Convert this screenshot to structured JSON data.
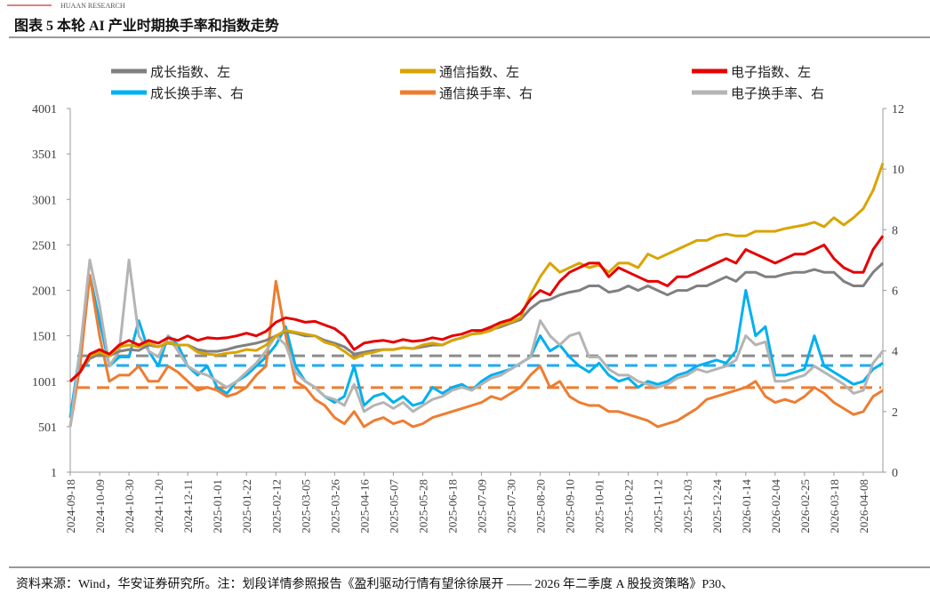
{
  "header": {
    "brand": "HUAAN RESEARCH"
  },
  "footer": {
    "source": "资料来源：Wind，华安证券研究所。注：划段详情参照报告《盈利驱动行情有望徐徐展开 —— 2026 年二季度 A 股投资策略》P30、"
  },
  "chart_data": {
    "type": "line",
    "title": "图表 5 本轮 AI 产业时期换手率和指数走势",
    "categories": [
      "2024-09-18",
      null,
      null,
      "2024-10-09",
      null,
      null,
      "2024-10-30",
      null,
      null,
      "2024-11-20",
      null,
      null,
      "2024-12-11",
      null,
      null,
      "2025-01-01",
      null,
      null,
      "2025-01-22",
      null,
      null,
      "2025-02-12",
      null,
      null,
      "2025-03-05",
      null,
      null,
      "2025-03-26",
      null,
      null,
      "2025-04-16",
      null,
      null,
      "2025-05-07",
      null,
      null,
      "2025-05-28",
      null,
      null,
      "2025-06-18",
      null,
      null,
      "2025-07-09",
      null,
      null,
      "2025-07-30",
      null,
      null,
      "2025-08-20",
      null,
      null,
      "2025-09-10",
      null,
      null,
      "2025-10-01",
      null,
      null,
      "2025-10-22",
      null,
      null,
      "2025-11-12",
      null,
      null,
      "2025-12-03",
      null,
      null,
      "2025-12-24",
      null,
      null,
      "2026-01-14",
      null,
      null,
      "2026-02-04",
      null,
      null,
      "2026-02-25",
      null,
      null,
      "2026-03-18",
      null,
      null,
      "2026-04-08",
      null,
      null
    ],
    "ylim": [
      1,
      4001
    ],
    "yticks": [
      1,
      501,
      1001,
      1501,
      2001,
      2501,
      3001,
      3501,
      4001
    ],
    "y2lim": [
      0,
      12
    ],
    "y2ticks": [
      0,
      2,
      4,
      6,
      8,
      10,
      12
    ],
    "legend": "top",
    "series": [
      {
        "name": "成长指数、左",
        "color": "#808080",
        "values": [
          1000,
          1100,
          1250,
          1300,
          1280,
          1330,
          1350,
          1340,
          1400,
          1380,
          1420,
          1400,
          1400,
          1350,
          1330,
          1330,
          1350,
          1380,
          1400,
          1420,
          1450,
          1500,
          1550,
          1530,
          1500,
          1500,
          1450,
          1420,
          1380,
          1300,
          1320,
          1340,
          1350,
          1350,
          1370,
          1360,
          1380,
          1400,
          1400,
          1450,
          1480,
          1520,
          1540,
          1570,
          1600,
          1640,
          1680,
          1800,
          1880,
          1900,
          1950,
          1980,
          2000,
          2050,
          2050,
          1980,
          2000,
          2050,
          2000,
          2050,
          2000,
          1950,
          2000,
          2000,
          2050,
          2050,
          2100,
          2150,
          2100,
          2200,
          2200,
          2150,
          2150,
          2180,
          2200,
          2200,
          2230,
          2200,
          2200,
          2100,
          2050,
          2050,
          2200,
          2300
        ]
      },
      {
        "name": "通信指数、左",
        "color": "#d9a400",
        "values": [
          1000,
          1100,
          1280,
          1320,
          1280,
          1380,
          1400,
          1380,
          1420,
          1380,
          1430,
          1400,
          1400,
          1320,
          1300,
          1290,
          1310,
          1320,
          1350,
          1340,
          1400,
          1500,
          1560,
          1540,
          1520,
          1500,
          1430,
          1400,
          1330,
          1250,
          1300,
          1320,
          1350,
          1350,
          1370,
          1360,
          1400,
          1420,
          1400,
          1450,
          1480,
          1520,
          1530,
          1560,
          1620,
          1650,
          1700,
          1950,
          2150,
          2300,
          2200,
          2250,
          2300,
          2250,
          2280,
          2200,
          2300,
          2300,
          2250,
          2400,
          2350,
          2400,
          2450,
          2500,
          2550,
          2550,
          2600,
          2620,
          2600,
          2600,
          2650,
          2650,
          2650,
          2680,
          2700,
          2720,
          2750,
          2700,
          2800,
          2720,
          2800,
          2900,
          3100,
          3400
        ]
      },
      {
        "name": "电子指数、左",
        "color": "#e60000",
        "values": [
          1000,
          1100,
          1300,
          1350,
          1300,
          1400,
          1450,
          1400,
          1450,
          1420,
          1480,
          1450,
          1500,
          1450,
          1480,
          1470,
          1480,
          1500,
          1530,
          1500,
          1550,
          1650,
          1700,
          1680,
          1650,
          1660,
          1620,
          1580,
          1500,
          1350,
          1420,
          1440,
          1450,
          1430,
          1460,
          1440,
          1450,
          1480,
          1460,
          1500,
          1520,
          1560,
          1560,
          1600,
          1650,
          1680,
          1750,
          1900,
          2000,
          1950,
          2100,
          2200,
          2250,
          2300,
          2300,
          2150,
          2250,
          2200,
          2150,
          2100,
          2100,
          2050,
          2150,
          2150,
          2200,
          2250,
          2300,
          2350,
          2300,
          2450,
          2400,
          2350,
          2300,
          2350,
          2400,
          2400,
          2450,
          2500,
          2350,
          2250,
          2200,
          2200,
          2450,
          2600
        ]
      },
      {
        "name": "成长换手率、右",
        "color": "#00b0f0",
        "axis": "y2",
        "values": [
          1.8,
          4,
          6.5,
          5,
          3.5,
          3.8,
          3.8,
          5,
          4,
          3.5,
          4.5,
          4.2,
          3.5,
          3.2,
          3.5,
          2.8,
          2.6,
          3,
          3.2,
          3.5,
          3.8,
          4.2,
          4.8,
          3.5,
          3,
          2.8,
          2.5,
          2.3,
          2.5,
          3.5,
          2.2,
          2.5,
          2.6,
          2.3,
          2.5,
          2.2,
          2.3,
          2.8,
          2.6,
          2.8,
          2.9,
          2.7,
          3,
          3.2,
          3.3,
          3.4,
          3.6,
          3.8,
          4.5,
          4,
          4.2,
          3.8,
          3.5,
          3.3,
          3.6,
          3.2,
          3,
          3.1,
          2.8,
          3,
          2.9,
          3,
          3.2,
          3.3,
          3.5,
          3.6,
          3.7,
          3.6,
          4,
          6,
          4.5,
          4.8,
          3.2,
          3.2,
          3.3,
          3.4,
          4.5,
          3.5,
          3.3,
          3.1,
          2.9,
          3,
          3.4,
          3.6
        ]
      },
      {
        "name": "通信换手率、右",
        "color": "#ed7d31",
        "axis": "y2",
        "values": [
          1.5,
          3.5,
          6.5,
          4.5,
          3,
          3.2,
          3.2,
          3.5,
          3,
          3,
          3.5,
          3.3,
          3,
          2.7,
          2.8,
          2.7,
          2.5,
          2.6,
          2.8,
          3.2,
          3.5,
          6.3,
          4.5,
          3,
          2.8,
          2.4,
          2.2,
          1.8,
          1.6,
          2,
          1.5,
          1.7,
          1.8,
          1.6,
          1.7,
          1.5,
          1.6,
          1.8,
          1.9,
          2,
          2.1,
          2.2,
          2.3,
          2.5,
          2.4,
          2.6,
          2.8,
          3.2,
          3.5,
          2.8,
          3,
          2.5,
          2.3,
          2.2,
          2.2,
          2,
          2,
          1.9,
          1.8,
          1.7,
          1.5,
          1.6,
          1.7,
          1.9,
          2.1,
          2.4,
          2.5,
          2.6,
          2.7,
          2.8,
          3,
          2.5,
          2.3,
          2.4,
          2.3,
          2.5,
          2.8,
          2.6,
          2.3,
          2.1,
          1.9,
          2,
          2.5,
          2.7
        ]
      },
      {
        "name": "电子换手率、右",
        "color": "#b4b4b4",
        "axis": "y2",
        "values": [
          1.5,
          4,
          7,
          5.5,
          3.5,
          4,
          7,
          4.5,
          4,
          3.8,
          4.5,
          4,
          3.5,
          3.3,
          3.2,
          3,
          2.8,
          3,
          3.3,
          3.6,
          4,
          4.5,
          4.2,
          3.3,
          3,
          2.8,
          2.5,
          2.4,
          2.2,
          2.9,
          2,
          2.2,
          2.3,
          2.1,
          2.3,
          2,
          2.2,
          2.4,
          2.5,
          2.7,
          2.8,
          2.7,
          2.9,
          3.1,
          3.2,
          3.4,
          3.6,
          3.8,
          5,
          4.5,
          4.2,
          4.5,
          4.6,
          3.8,
          3.8,
          3.4,
          3.2,
          3.2,
          3,
          2.9,
          2.8,
          2.9,
          3.1,
          3.2,
          3.4,
          3.3,
          3.4,
          3.5,
          3.7,
          4.5,
          4.2,
          4.3,
          3,
          3,
          3.1,
          3.2,
          3.5,
          3.3,
          3.1,
          2.9,
          2.6,
          2.7,
          3.6,
          4
        ]
      }
    ],
    "reference_lines": [
      {
        "value": 3.84,
        "color": "#8c8c8c",
        "axis": "y2"
      },
      {
        "value": 3.52,
        "color": "#1eaaf1",
        "axis": "y2"
      },
      {
        "value": 2.79,
        "color": "#ed7d31",
        "axis": "y2"
      }
    ]
  }
}
